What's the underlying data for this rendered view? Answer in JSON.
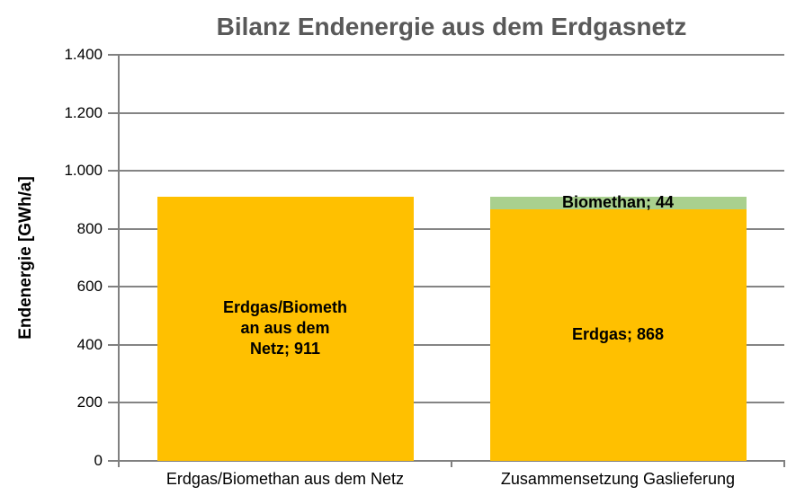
{
  "chart_data": {
    "type": "bar",
    "stacked": true,
    "title": "Bilanz Endenergie aus dem Erdgasnetz",
    "ylabel": "Endenergie [GWh/a]",
    "xlabel": "",
    "ylim": [
      0,
      1400
    ],
    "ytick_interval": 200,
    "grid": true,
    "legend_position": "none",
    "yticks": [
      {
        "value": 1400,
        "label": "1.400"
      },
      {
        "value": 1200,
        "label": "1.200"
      },
      {
        "value": 1000,
        "label": "1.000"
      },
      {
        "value": 800,
        "label": "800"
      },
      {
        "value": 600,
        "label": "600"
      },
      {
        "value": 400,
        "label": "400"
      },
      {
        "value": 200,
        "label": "200"
      },
      {
        "value": 0,
        "label": "0"
      }
    ],
    "categories": [
      "Erdgas/Biomethan aus dem Netz",
      "Zusammensetzung Gaslieferung"
    ],
    "bars": [
      {
        "category": "Erdgas/Biomethan aus dem Netz",
        "segments": [
          {
            "name": "erdgas-biomethan-aus-dem-netz",
            "series": "Erdgas/Biomethan aus dem Netz",
            "value": 911,
            "color": "#FFC000",
            "label_lines": [
              "Erdgas/Biometh",
              "an aus dem",
              "Netz; 911"
            ]
          }
        ]
      },
      {
        "category": "Zusammensetzung Gaslieferung",
        "segments": [
          {
            "name": "erdgas",
            "series": "Erdgas",
            "value": 868,
            "color": "#FFC000",
            "label_lines": [
              "Erdgas; 868"
            ]
          },
          {
            "name": "biomethan",
            "series": "Biomethan",
            "value": 44,
            "color": "#A9D08E",
            "label_lines": [
              "Biomethan; 44"
            ]
          }
        ]
      }
    ],
    "colors": {
      "erdgas": "#FFC000",
      "biomethan": "#A9D08E",
      "title_text": "#595959",
      "axis": "#808080",
      "label_text": "#000000"
    }
  }
}
